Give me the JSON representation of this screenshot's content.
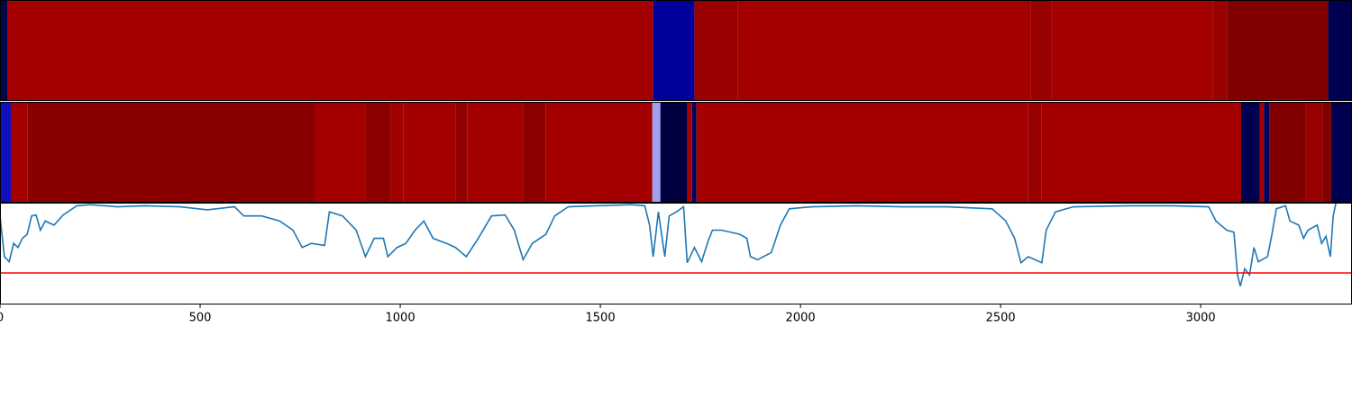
{
  "chart_data": [
    {
      "type": "strip",
      "xlim": [
        0,
        3378
      ],
      "segments": [
        {
          "start": 0,
          "end": 18,
          "color": "#00084a"
        },
        {
          "start": 18,
          "end": 1632,
          "color": "#a50000"
        },
        {
          "start": 1632,
          "end": 1735,
          "color": "#00009a"
        },
        {
          "start": 1735,
          "end": 1844,
          "color": "#990000"
        },
        {
          "start": 1844,
          "end": 2576,
          "color": "#a50000"
        },
        {
          "start": 2576,
          "end": 2626,
          "color": "#990000"
        },
        {
          "start": 2626,
          "end": 3031,
          "color": "#a50000"
        },
        {
          "start": 3031,
          "end": 3067,
          "color": "#990000"
        },
        {
          "start": 3067,
          "end": 3318,
          "color": "#800000"
        },
        {
          "start": 3318,
          "end": 3378,
          "color": "#000050"
        }
      ]
    },
    {
      "type": "strip",
      "xlim": [
        0,
        3378
      ],
      "segments": [
        {
          "start": 0,
          "end": 27,
          "color": "#1010c0"
        },
        {
          "start": 27,
          "end": 68,
          "color": "#a50000"
        },
        {
          "start": 68,
          "end": 787,
          "color": "#8a0000"
        },
        {
          "start": 787,
          "end": 913,
          "color": "#a50000"
        },
        {
          "start": 913,
          "end": 976,
          "color": "#8c0000"
        },
        {
          "start": 976,
          "end": 1007,
          "color": "#a00000"
        },
        {
          "start": 1007,
          "end": 1138,
          "color": "#a50000"
        },
        {
          "start": 1138,
          "end": 1167,
          "color": "#900000"
        },
        {
          "start": 1167,
          "end": 1307,
          "color": "#a50000"
        },
        {
          "start": 1307,
          "end": 1364,
          "color": "#8c0000"
        },
        {
          "start": 1364,
          "end": 1630,
          "color": "#a50000"
        },
        {
          "start": 1630,
          "end": 1650,
          "color": "#a0a0f0"
        },
        {
          "start": 1650,
          "end": 1717,
          "color": "#000040"
        },
        {
          "start": 1717,
          "end": 1729,
          "color": "#a50000"
        },
        {
          "start": 1729,
          "end": 1740,
          "color": "#000060"
        },
        {
          "start": 1740,
          "end": 2569,
          "color": "#a50000"
        },
        {
          "start": 2569,
          "end": 2603,
          "color": "#990000"
        },
        {
          "start": 2603,
          "end": 3101,
          "color": "#a50000"
        },
        {
          "start": 3101,
          "end": 3148,
          "color": "#000050"
        },
        {
          "start": 3148,
          "end": 3158,
          "color": "#a00000"
        },
        {
          "start": 3158,
          "end": 3171,
          "color": "#000060"
        },
        {
          "start": 3171,
          "end": 3261,
          "color": "#800000"
        },
        {
          "start": 3261,
          "end": 3304,
          "color": "#990000"
        },
        {
          "start": 3304,
          "end": 3326,
          "color": "#800000"
        },
        {
          "start": 3326,
          "end": 3378,
          "color": "#000050"
        }
      ]
    },
    {
      "type": "line",
      "xlim": [
        0,
        3378
      ],
      "ylim": [
        0,
        1
      ],
      "xticks": [
        0,
        500,
        1000,
        1500,
        2000,
        2500,
        3000
      ],
      "color": "#1f77b4",
      "threshold": 0.31,
      "threshold_color": "#ff0000",
      "x": [
        0,
        11,
        23,
        34,
        45,
        56,
        68,
        79,
        90,
        101,
        113,
        135,
        158,
        192,
        225,
        293,
        361,
        451,
        518,
        586,
        609,
        654,
        699,
        732,
        755,
        778,
        811,
        823,
        856,
        890,
        913,
        935,
        958,
        969,
        992,
        1014,
        1037,
        1059,
        1082,
        1116,
        1138,
        1165,
        1195,
        1228,
        1262,
        1285,
        1307,
        1330,
        1364,
        1386,
        1420,
        1488,
        1578,
        1611,
        1623,
        1632,
        1645,
        1661,
        1672,
        1690,
        1708,
        1717,
        1735,
        1753,
        1769,
        1780,
        1803,
        1848,
        1866,
        1875,
        1893,
        1927,
        1950,
        1972,
        2028,
        2141,
        2254,
        2366,
        2479,
        2513,
        2535,
        2551,
        2569,
        2603,
        2614,
        2637,
        2682,
        2817,
        2930,
        3020,
        3038,
        3065,
        3083,
        3092,
        3099,
        3110,
        3122,
        3133,
        3144,
        3167,
        3178,
        3189,
        3212,
        3223,
        3245,
        3257,
        3268,
        3291,
        3302,
        3313,
        3324,
        3331,
        3338
      ],
      "values": [
        0.87,
        0.47,
        0.42,
        0.6,
        0.56,
        0.65,
        0.69,
        0.87,
        0.88,
        0.73,
        0.82,
        0.78,
        0.88,
        0.97,
        0.98,
        0.96,
        0.97,
        0.96,
        0.93,
        0.96,
        0.87,
        0.87,
        0.82,
        0.73,
        0.56,
        0.6,
        0.58,
        0.91,
        0.87,
        0.73,
        0.47,
        0.65,
        0.65,
        0.47,
        0.56,
        0.6,
        0.73,
        0.82,
        0.65,
        0.6,
        0.56,
        0.47,
        0.65,
        0.87,
        0.88,
        0.73,
        0.44,
        0.6,
        0.69,
        0.87,
        0.96,
        0.97,
        0.98,
        0.97,
        0.78,
        0.47,
        0.91,
        0.47,
        0.87,
        0.91,
        0.96,
        0.41,
        0.56,
        0.42,
        0.62,
        0.73,
        0.73,
        0.69,
        0.65,
        0.47,
        0.44,
        0.51,
        0.78,
        0.94,
        0.96,
        0.97,
        0.96,
        0.96,
        0.94,
        0.82,
        0.65,
        0.41,
        0.47,
        0.41,
        0.73,
        0.91,
        0.96,
        0.97,
        0.97,
        0.96,
        0.82,
        0.73,
        0.71,
        0.29,
        0.18,
        0.35,
        0.29,
        0.56,
        0.42,
        0.47,
        0.69,
        0.94,
        0.97,
        0.82,
        0.78,
        0.65,
        0.73,
        0.78,
        0.6,
        0.67,
        0.47,
        0.87,
        1.0
      ]
    }
  ]
}
